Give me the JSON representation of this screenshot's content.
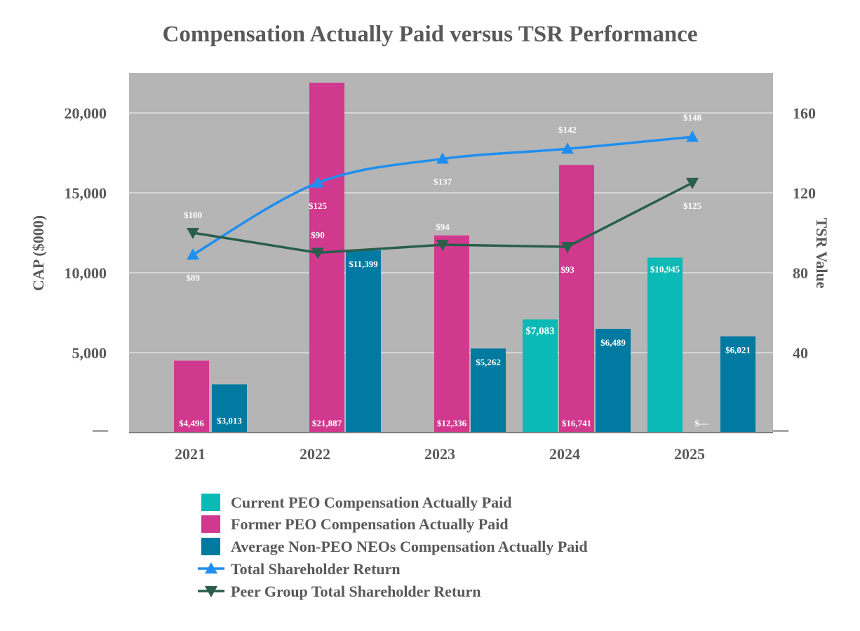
{
  "chart_data": {
    "type": "bar",
    "title": "Compensation Actually Paid versus TSR Performance",
    "categories": [
      "2021",
      "2022",
      "2023",
      "2024",
      "2025"
    ],
    "ylabel": "CAP ($000)",
    "y2label": "TSR Value",
    "ylim": [
      0,
      22500
    ],
    "y2lim": [
      0,
      180
    ],
    "y_ticks": [
      "—",
      "5,000",
      "10,000",
      "15,000",
      "20,000"
    ],
    "y_tick_values": [
      0,
      5000,
      10000,
      15000,
      20000
    ],
    "y2_ticks": [
      "—",
      "40",
      "80",
      "120",
      "160"
    ],
    "y2_tick_values": [
      0,
      40,
      80,
      120,
      160
    ],
    "grid": true,
    "legend_position": "bottom",
    "series": [
      {
        "name": "Current PEO Compensation Actually Paid",
        "kind": "bar",
        "color": "#0cbab5",
        "values": [
          null,
          null,
          null,
          7083,
          10945
        ],
        "labels": [
          "",
          "",
          "",
          "$7,083",
          "$10,945"
        ]
      },
      {
        "name": "Former PEO Compensation Actually Paid",
        "kind": "bar",
        "color": "#d1398f",
        "values": [
          4496,
          21887,
          12336,
          16741,
          0
        ],
        "labels": [
          "$4,496",
          "$21,887",
          "$12,336",
          "$16,741",
          "$—"
        ]
      },
      {
        "name": "Average Non-PEO NEOs Compensation Actually Paid",
        "kind": "bar",
        "color": "#007aa0",
        "values": [
          3013,
          11399,
          5262,
          6489,
          6021
        ],
        "labels": [
          "$3,013",
          "$11,399",
          "$5,262",
          "$6,489",
          "$6,021"
        ]
      },
      {
        "name": "Total Shareholder Return",
        "kind": "line",
        "axis": "y2",
        "color": "#1e8ff0",
        "marker": "triangle-up",
        "values": [
          89,
          125,
          137,
          142,
          148
        ],
        "labels": [
          "$89",
          "$125",
          "$137",
          "$142",
          "$148"
        ]
      },
      {
        "name": "Peer Group Total Shareholder Return",
        "kind": "line",
        "axis": "y2",
        "color": "#2a5e4c",
        "marker": "triangle-down",
        "values": [
          100,
          90,
          94,
          93,
          125
        ],
        "labels": [
          "$100",
          "$90",
          "$94",
          "$93",
          "$125"
        ]
      }
    ]
  },
  "colors": {
    "plot_background": "#b5b5b5",
    "gridline": "#e0e0e0",
    "text": "#595959"
  }
}
